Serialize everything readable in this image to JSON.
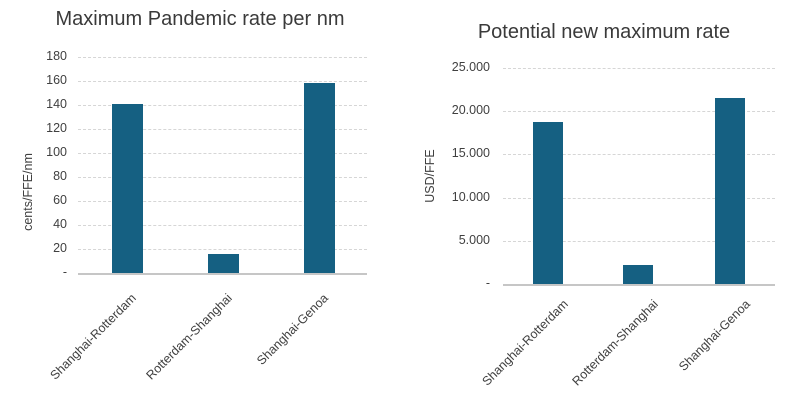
{
  "figure": {
    "background": "#ffffff",
    "description_colors": {
      "bar": "#156082",
      "gridline": "#d6d6d6",
      "axis_line": "#c6c6c6",
      "title_text": "#3a3a3a",
      "tick_text": "#404040"
    }
  },
  "chart_data": [
    {
      "type": "bar",
      "title": "Maximum Pandemic rate per nm",
      "ylabel": "cents/FFE/nm",
      "xlabel": "",
      "categories": [
        "Shanghai-Rotterdam",
        "Rotterdam-Shanghai",
        "Shanghai-Genoa"
      ],
      "values": [
        141,
        16,
        158
      ],
      "ylim": [
        0,
        180
      ],
      "ytick_interval": 20,
      "ytick_labels": [
        "180",
        "160",
        "140",
        "120",
        "100",
        "80",
        "60",
        "40",
        "20",
        "-"
      ],
      "grid": true,
      "legend": false,
      "bar_color": "#156082"
    },
    {
      "type": "bar",
      "title": "Potential new maximum rate",
      "ylabel": "USD/FFE",
      "xlabel": "",
      "categories": [
        "Shanghai-Rotterdam",
        "Rotterdam-Shanghai",
        "Shanghai-Genoa"
      ],
      "values": [
        18800,
        2200,
        21500
      ],
      "ylim": [
        0,
        25000
      ],
      "ytick_interval": 5000,
      "ytick_labels": [
        "25.000",
        "20.000",
        "15.000",
        "10.000",
        "5.000",
        "-"
      ],
      "grid": true,
      "legend": false,
      "bar_color": "#156082"
    }
  ]
}
